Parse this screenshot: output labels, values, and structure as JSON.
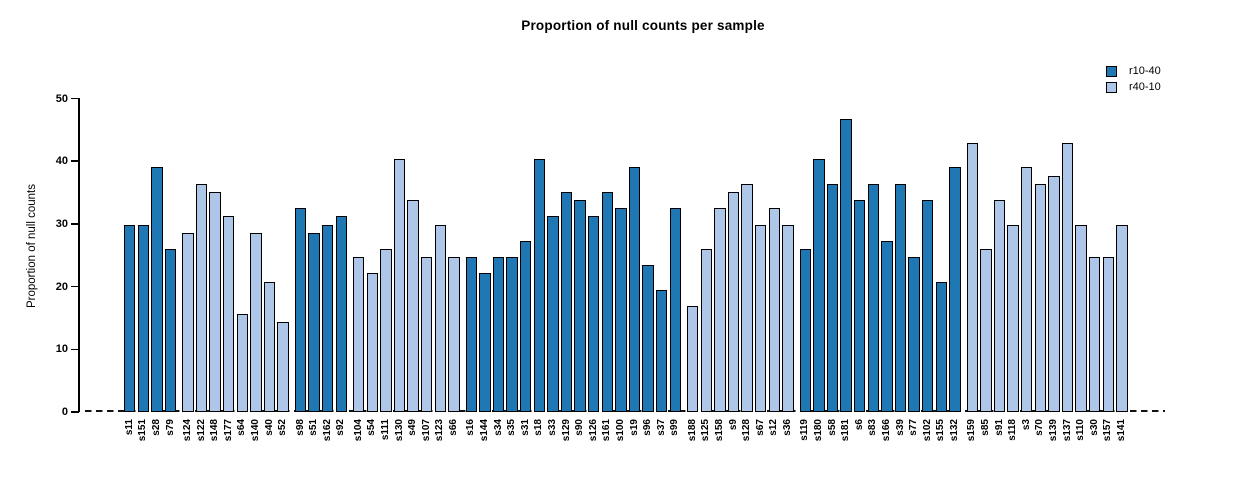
{
  "chart_data": {
    "type": "bar",
    "title": "Proportion of null counts per sample",
    "ylabel": "Proportion of null counts",
    "ylim": [
      0,
      50
    ],
    "yticks": [
      0,
      10,
      20,
      30,
      40,
      50
    ],
    "grid": false,
    "legend_position": "top-right",
    "zero_line_style": "dashed",
    "legend": [
      {
        "label": "r10-40",
        "color": "#1f77b4"
      },
      {
        "label": "r40-10",
        "color": "#aec7e8"
      }
    ],
    "bars": [
      {
        "label": "s11",
        "value": 29.9,
        "series": "r10-40"
      },
      {
        "label": "s151",
        "value": 29.9,
        "series": "r10-40"
      },
      {
        "label": "s28",
        "value": 39.0,
        "series": "r10-40"
      },
      {
        "label": "s79",
        "value": 26.0,
        "series": "r10-40"
      },
      {
        "label": "s124",
        "value": 28.6,
        "series": "r40-10"
      },
      {
        "label": "s122",
        "value": 36.4,
        "series": "r40-10"
      },
      {
        "label": "s148",
        "value": 35.1,
        "series": "r40-10"
      },
      {
        "label": "s177",
        "value": 31.2,
        "series": "r40-10"
      },
      {
        "label": "s64",
        "value": 15.6,
        "series": "r40-10"
      },
      {
        "label": "s140",
        "value": 28.6,
        "series": "r40-10"
      },
      {
        "label": "s40",
        "value": 20.8,
        "series": "r40-10"
      },
      {
        "label": "s52",
        "value": 14.3,
        "series": "r40-10"
      },
      {
        "label": "s98",
        "value": 32.5,
        "series": "r10-40"
      },
      {
        "label": "s51",
        "value": 28.6,
        "series": "r10-40"
      },
      {
        "label": "s162",
        "value": 29.9,
        "series": "r10-40"
      },
      {
        "label": "s92",
        "value": 31.2,
        "series": "r10-40"
      },
      {
        "label": "s104",
        "value": 24.7,
        "series": "r40-10"
      },
      {
        "label": "s54",
        "value": 22.1,
        "series": "r40-10"
      },
      {
        "label": "s111",
        "value": 26.0,
        "series": "r40-10"
      },
      {
        "label": "s130",
        "value": 40.3,
        "series": "r40-10"
      },
      {
        "label": "s49",
        "value": 33.8,
        "series": "r40-10"
      },
      {
        "label": "s107",
        "value": 24.7,
        "series": "r40-10"
      },
      {
        "label": "s123",
        "value": 29.9,
        "series": "r40-10"
      },
      {
        "label": "s66",
        "value": 24.7,
        "series": "r40-10"
      },
      {
        "label": "s16",
        "value": 24.7,
        "series": "r10-40"
      },
      {
        "label": "s144",
        "value": 22.1,
        "series": "r10-40"
      },
      {
        "label": "s34",
        "value": 24.7,
        "series": "r10-40"
      },
      {
        "label": "s35",
        "value": 24.7,
        "series": "r10-40"
      },
      {
        "label": "s31",
        "value": 27.3,
        "series": "r10-40"
      },
      {
        "label": "s18",
        "value": 40.3,
        "series": "r10-40"
      },
      {
        "label": "s33",
        "value": 31.2,
        "series": "r10-40"
      },
      {
        "label": "s129",
        "value": 35.1,
        "series": "r10-40"
      },
      {
        "label": "s90",
        "value": 33.8,
        "series": "r10-40"
      },
      {
        "label": "s126",
        "value": 31.2,
        "series": "r10-40"
      },
      {
        "label": "s161",
        "value": 35.1,
        "series": "r10-40"
      },
      {
        "label": "s100",
        "value": 32.5,
        "series": "r10-40"
      },
      {
        "label": "s19",
        "value": 39.0,
        "series": "r10-40"
      },
      {
        "label": "s96",
        "value": 23.4,
        "series": "r10-40"
      },
      {
        "label": "s37",
        "value": 19.5,
        "series": "r10-40"
      },
      {
        "label": "s99",
        "value": 32.5,
        "series": "r10-40"
      },
      {
        "label": "s188",
        "value": 16.9,
        "series": "r40-10"
      },
      {
        "label": "s125",
        "value": 26.0,
        "series": "r40-10"
      },
      {
        "label": "s158",
        "value": 32.5,
        "series": "r40-10"
      },
      {
        "label": "s9",
        "value": 35.1,
        "series": "r40-10"
      },
      {
        "label": "s128",
        "value": 36.4,
        "series": "r40-10"
      },
      {
        "label": "s67",
        "value": 29.9,
        "series": "r40-10"
      },
      {
        "label": "s12",
        "value": 32.5,
        "series": "r40-10"
      },
      {
        "label": "s36",
        "value": 29.9,
        "series": "r40-10"
      },
      {
        "label": "s119",
        "value": 26.0,
        "series": "r10-40"
      },
      {
        "label": "s180",
        "value": 40.3,
        "series": "r10-40"
      },
      {
        "label": "s58",
        "value": 36.4,
        "series": "r10-40"
      },
      {
        "label": "s181",
        "value": 46.8,
        "series": "r10-40"
      },
      {
        "label": "s6",
        "value": 33.8,
        "series": "r10-40"
      },
      {
        "label": "s83",
        "value": 36.4,
        "series": "r10-40"
      },
      {
        "label": "s166",
        "value": 27.3,
        "series": "r10-40"
      },
      {
        "label": "s39",
        "value": 36.4,
        "series": "r10-40"
      },
      {
        "label": "s77",
        "value": 24.7,
        "series": "r10-40"
      },
      {
        "label": "s102",
        "value": 33.8,
        "series": "r10-40"
      },
      {
        "label": "s155",
        "value": 20.8,
        "series": "r10-40"
      },
      {
        "label": "s132",
        "value": 39.0,
        "series": "r10-40"
      },
      {
        "label": "s159",
        "value": 42.9,
        "series": "r40-10"
      },
      {
        "label": "s85",
        "value": 26.0,
        "series": "r40-10"
      },
      {
        "label": "s91",
        "value": 33.8,
        "series": "r40-10"
      },
      {
        "label": "s118",
        "value": 29.9,
        "series": "r40-10"
      },
      {
        "label": "s3",
        "value": 39.0,
        "series": "r40-10"
      },
      {
        "label": "s70",
        "value": 36.4,
        "series": "r40-10"
      },
      {
        "label": "s139",
        "value": 37.7,
        "series": "r40-10"
      },
      {
        "label": "s137",
        "value": 42.9,
        "series": "r40-10"
      },
      {
        "label": "s110",
        "value": 29.9,
        "series": "r40-10"
      },
      {
        "label": "s30",
        "value": 24.7,
        "series": "r40-10"
      },
      {
        "label": "s157",
        "value": 24.7,
        "series": "r40-10"
      },
      {
        "label": "s141",
        "value": 29.9,
        "series": "r40-10"
      }
    ]
  }
}
